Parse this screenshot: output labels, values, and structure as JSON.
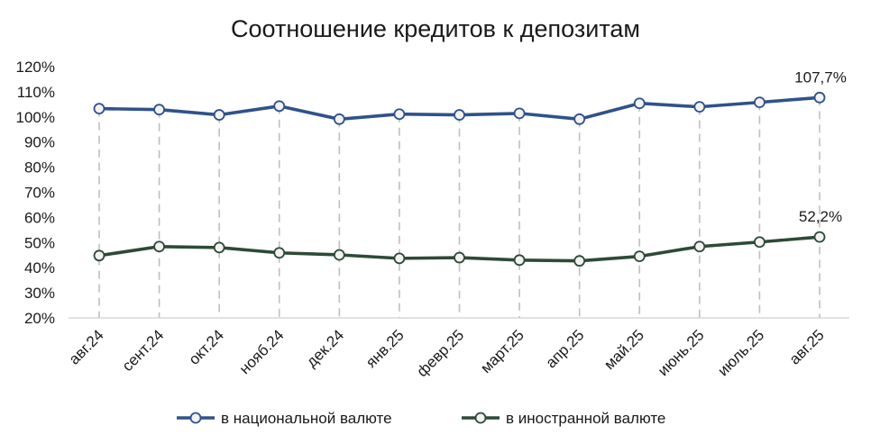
{
  "chart_data": {
    "type": "line",
    "title": "Соотношение кредитов к депозитам",
    "xlabel": "",
    "ylabel": "",
    "categories": [
      "авг.24",
      "сент.24",
      "окт.24",
      "нояб.24",
      "дек.24",
      "янв.25",
      "февр.25",
      "март.25",
      "апр.25",
      "май.25",
      "июнь.25",
      "июль.25",
      "авг.25"
    ],
    "ylim": [
      20,
      120
    ],
    "yticks": [
      "20%",
      "30%",
      "40%",
      "50%",
      "60%",
      "70%",
      "80%",
      "90%",
      "100%",
      "110%",
      "120%"
    ],
    "grid": "vertical-dashed",
    "legend_position": "bottom",
    "series": [
      {
        "name": "в национальной валюте",
        "color": "#2F5289",
        "values": [
          103.3,
          102.9,
          100.8,
          104.3,
          99.1,
          101.1,
          100.8,
          101.4,
          99.1,
          105.4,
          104.0,
          105.8,
          107.7
        ],
        "end_label": "107,7%"
      },
      {
        "name": "в иностранной валюте",
        "color": "#2D4A36",
        "values": [
          44.8,
          48.4,
          48.0,
          45.9,
          45.1,
          43.7,
          44.0,
          43.0,
          42.7,
          44.5,
          48.4,
          50.2,
          52.2
        ],
        "end_label": "52,2%"
      }
    ]
  }
}
